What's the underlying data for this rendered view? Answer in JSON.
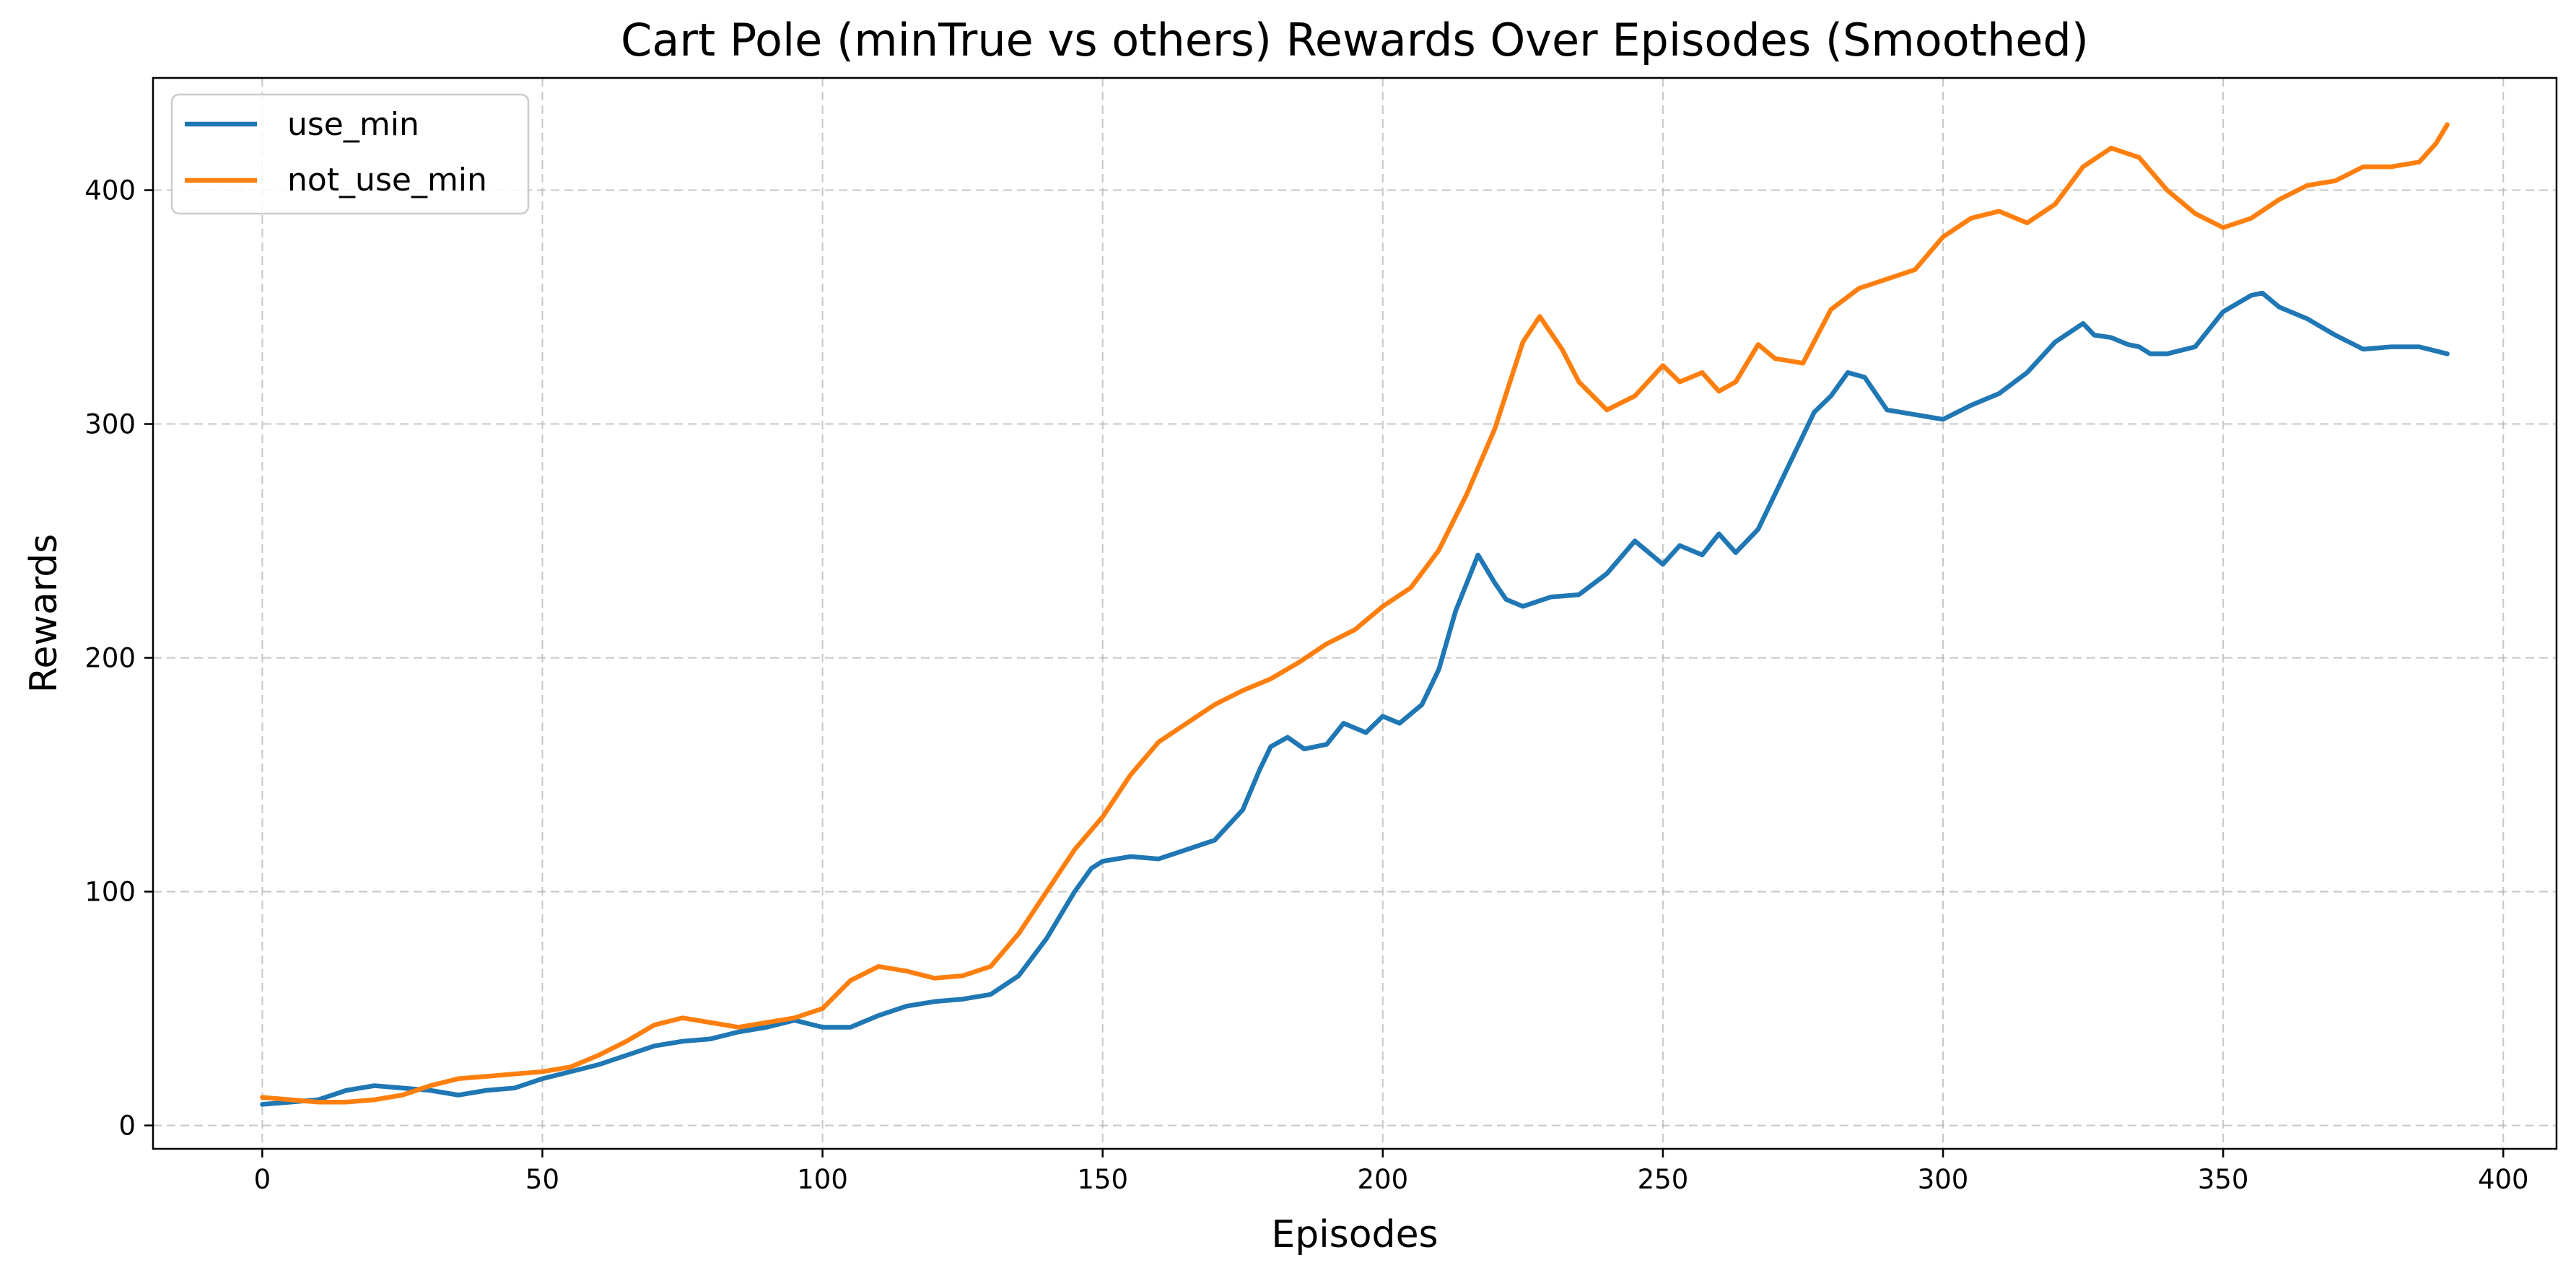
{
  "chart_data": {
    "type": "line",
    "title": "Cart Pole (minTrue vs others) Rewards Over Episodes (Smoothed)",
    "xlabel": "Episodes",
    "ylabel": "Rewards",
    "xlim": [
      -19.5,
      409.5
    ],
    "ylim": [
      -10,
      448
    ],
    "xticks": [
      0,
      50,
      100,
      150,
      200,
      250,
      300,
      350,
      400
    ],
    "yticks": [
      0,
      100,
      200,
      300,
      400
    ],
    "grid": true,
    "legend_position": "top-left",
    "series": [
      {
        "name": "use_min",
        "color": "#1f77b4",
        "points": [
          [
            0,
            9
          ],
          [
            5,
            10
          ],
          [
            10,
            11
          ],
          [
            15,
            15
          ],
          [
            20,
            17
          ],
          [
            25,
            16
          ],
          [
            30,
            15
          ],
          [
            35,
            13
          ],
          [
            40,
            15
          ],
          [
            45,
            16
          ],
          [
            50,
            20
          ],
          [
            55,
            23
          ],
          [
            60,
            26
          ],
          [
            65,
            30
          ],
          [
            70,
            34
          ],
          [
            75,
            36
          ],
          [
            80,
            37
          ],
          [
            85,
            40
          ],
          [
            90,
            42
          ],
          [
            95,
            45
          ],
          [
            100,
            42
          ],
          [
            105,
            42
          ],
          [
            110,
            47
          ],
          [
            115,
            51
          ],
          [
            120,
            53
          ],
          [
            125,
            54
          ],
          [
            130,
            56
          ],
          [
            135,
            64
          ],
          [
            140,
            80
          ],
          [
            145,
            100
          ],
          [
            148,
            110
          ],
          [
            150,
            113
          ],
          [
            155,
            115
          ],
          [
            160,
            114
          ],
          [
            165,
            118
          ],
          [
            170,
            122
          ],
          [
            175,
            135
          ],
          [
            178,
            152
          ],
          [
            180,
            162
          ],
          [
            183,
            166
          ],
          [
            186,
            161
          ],
          [
            190,
            163
          ],
          [
            193,
            172
          ],
          [
            197,
            168
          ],
          [
            200,
            175
          ],
          [
            203,
            172
          ],
          [
            207,
            180
          ],
          [
            210,
            195
          ],
          [
            213,
            220
          ],
          [
            217,
            244
          ],
          [
            220,
            232
          ],
          [
            222,
            225
          ],
          [
            225,
            222
          ],
          [
            230,
            226
          ],
          [
            235,
            227
          ],
          [
            240,
            236
          ],
          [
            245,
            250
          ],
          [
            250,
            240
          ],
          [
            253,
            248
          ],
          [
            257,
            244
          ],
          [
            260,
            253
          ],
          [
            263,
            245
          ],
          [
            267,
            255
          ],
          [
            270,
            270
          ],
          [
            273,
            285
          ],
          [
            277,
            305
          ],
          [
            280,
            312
          ],
          [
            283,
            322
          ],
          [
            286,
            320
          ],
          [
            290,
            306
          ],
          [
            295,
            304
          ],
          [
            300,
            302
          ],
          [
            305,
            308
          ],
          [
            310,
            313
          ],
          [
            315,
            322
          ],
          [
            320,
            335
          ],
          [
            325,
            343
          ],
          [
            327,
            338
          ],
          [
            330,
            337
          ],
          [
            333,
            334
          ],
          [
            335,
            333
          ],
          [
            337,
            330
          ],
          [
            340,
            330
          ],
          [
            345,
            333
          ],
          [
            350,
            348
          ],
          [
            355,
            355
          ],
          [
            357,
            356
          ],
          [
            360,
            350
          ],
          [
            365,
            345
          ],
          [
            370,
            338
          ],
          [
            375,
            332
          ],
          [
            380,
            333
          ],
          [
            385,
            333
          ],
          [
            390,
            330
          ]
        ]
      },
      {
        "name": "not_use_min",
        "color": "#ff7f0e",
        "points": [
          [
            0,
            12
          ],
          [
            5,
            11
          ],
          [
            10,
            10
          ],
          [
            15,
            10
          ],
          [
            20,
            11
          ],
          [
            25,
            13
          ],
          [
            30,
            17
          ],
          [
            35,
            20
          ],
          [
            40,
            21
          ],
          [
            45,
            22
          ],
          [
            50,
            23
          ],
          [
            55,
            25
          ],
          [
            60,
            30
          ],
          [
            65,
            36
          ],
          [
            70,
            43
          ],
          [
            75,
            46
          ],
          [
            80,
            44
          ],
          [
            85,
            42
          ],
          [
            90,
            44
          ],
          [
            95,
            46
          ],
          [
            100,
            50
          ],
          [
            105,
            62
          ],
          [
            110,
            68
          ],
          [
            115,
            66
          ],
          [
            120,
            63
          ],
          [
            125,
            64
          ],
          [
            130,
            68
          ],
          [
            135,
            82
          ],
          [
            140,
            100
          ],
          [
            145,
            118
          ],
          [
            150,
            132
          ],
          [
            155,
            150
          ],
          [
            160,
            164
          ],
          [
            165,
            172
          ],
          [
            170,
            180
          ],
          [
            175,
            186
          ],
          [
            180,
            191
          ],
          [
            185,
            198
          ],
          [
            190,
            206
          ],
          [
            195,
            212
          ],
          [
            200,
            222
          ],
          [
            205,
            230
          ],
          [
            210,
            246
          ],
          [
            215,
            270
          ],
          [
            220,
            298
          ],
          [
            225,
            335
          ],
          [
            228,
            346
          ],
          [
            232,
            332
          ],
          [
            235,
            318
          ],
          [
            240,
            306
          ],
          [
            245,
            312
          ],
          [
            250,
            325
          ],
          [
            253,
            318
          ],
          [
            257,
            322
          ],
          [
            260,
            314
          ],
          [
            263,
            318
          ],
          [
            267,
            334
          ],
          [
            270,
            328
          ],
          [
            275,
            326
          ],
          [
            280,
            349
          ],
          [
            285,
            358
          ],
          [
            290,
            362
          ],
          [
            295,
            366
          ],
          [
            300,
            380
          ],
          [
            305,
            388
          ],
          [
            310,
            391
          ],
          [
            315,
            386
          ],
          [
            320,
            394
          ],
          [
            325,
            410
          ],
          [
            330,
            418
          ],
          [
            335,
            414
          ],
          [
            340,
            400
          ],
          [
            345,
            390
          ],
          [
            350,
            384
          ],
          [
            355,
            388
          ],
          [
            360,
            396
          ],
          [
            365,
            402
          ],
          [
            370,
            404
          ],
          [
            375,
            410
          ],
          [
            380,
            410
          ],
          [
            385,
            412
          ],
          [
            388,
            420
          ],
          [
            390,
            428
          ]
        ]
      }
    ]
  }
}
